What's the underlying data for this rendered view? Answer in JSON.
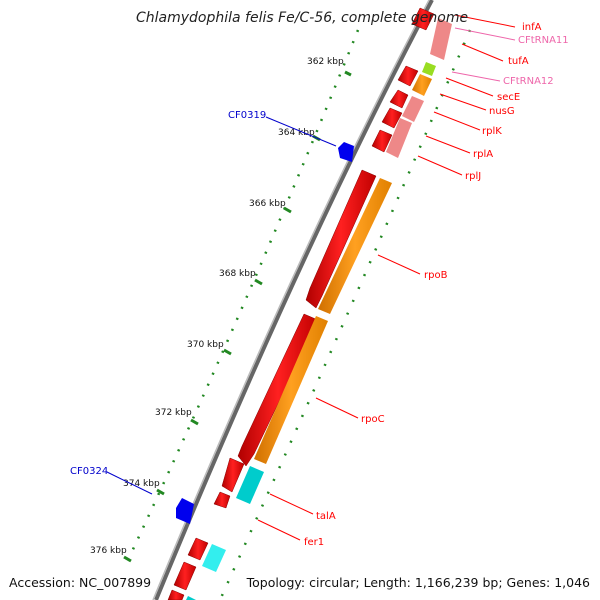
{
  "title": "Chlamydophila felis Fe/C-56, complete genome",
  "footer": {
    "accession": "Accession: NC_007899",
    "topology": "Topology: circular; Length: 1,166,239 bp; Genes: 1,046"
  },
  "scale_labels": [
    "362 kbp",
    "364 kbp",
    "366 kbp",
    "368 kbp",
    "370 kbp",
    "372 kbp",
    "374 kbp",
    "376 kbp"
  ],
  "gene_labels": {
    "infA": "infA",
    "cftrna11": "CFtRNA11",
    "tufA": "tufA",
    "cftrna12": "CFtRNA12",
    "secE": "secE",
    "nusG": "nusG",
    "rplK": "rplK",
    "rplA": "rplA",
    "rplJ": "rplJ",
    "rpoB": "rpoB",
    "rpoC": "rpoC",
    "talA": "talA",
    "fer1": "fer1",
    "cf0319": "CF0319",
    "cf0324": "CF0324"
  },
  "colors": {
    "red": "#ff0000",
    "pink": "#ee8888",
    "orange": "#ff9900",
    "cyan": "#00dddd",
    "blue": "#0000ff",
    "green_tick": "#228822",
    "trna_label": "#ee66aa",
    "backbone": "#888888"
  }
}
